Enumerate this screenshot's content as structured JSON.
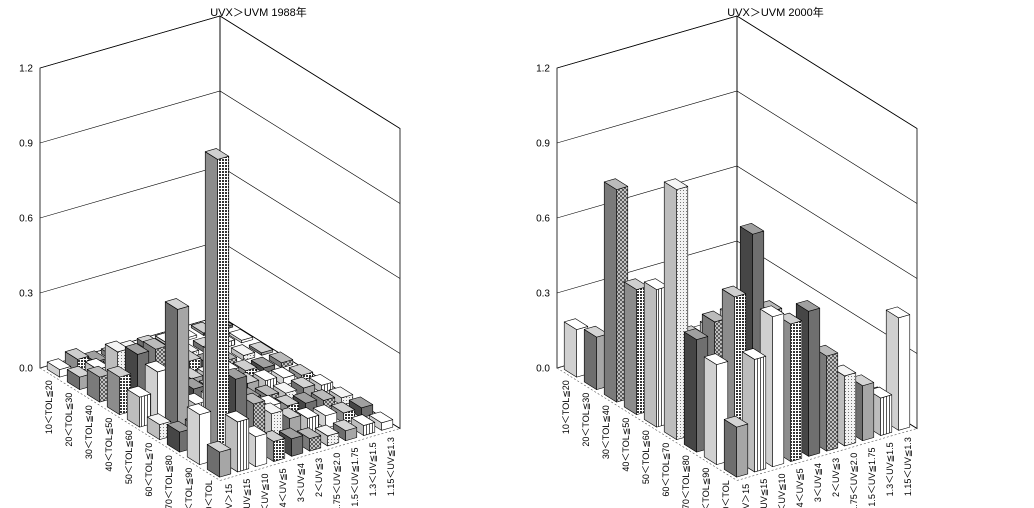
{
  "chart_data": [
    {
      "type": "bar3d",
      "title": "UVX＞UVM  1988年",
      "zlim": [
        0,
        1.2
      ],
      "z_ticks": [
        "0.0",
        "0.3",
        "0.6",
        "0.9",
        "1.2"
      ],
      "tol_categories": [
        "10＜TOL≦20",
        "20＜TOL≦30",
        "30＜TOL≦40",
        "40＜TOL≦50",
        "50＜TOL≦60",
        "60＜TOL≦70",
        "70＜TOL≦80",
        "80＜TOL≦90",
        "90＜TOL"
      ],
      "uv_categories": [
        "UV＞15",
        "10＜UV≦15",
        "5＜UV≦10",
        "4＜UV≦5",
        "3＜UV≦4",
        "2＜UV≦3",
        "1.75＜UV≦2.0",
        "1.5＜UV≦1.75",
        "1.3＜UV≦1.5",
        "1.15＜UV≦1.3"
      ],
      "values": [
        [
          0.03,
          0.05,
          0.02,
          0.02,
          0.02,
          0.02,
          0.01,
          0.01,
          0.01,
          0.01
        ],
        [
          0.05,
          0.06,
          0.04,
          0.04,
          0.04,
          0.03,
          0.02,
          0.02,
          0.02,
          0.01
        ],
        [
          0.1,
          0.18,
          0.06,
          0.05,
          0.04,
          0.06,
          0.03,
          0.02,
          0.02,
          0.01
        ],
        [
          0.15,
          0.22,
          0.22,
          0.07,
          0.06,
          0.05,
          0.05,
          0.03,
          0.02,
          0.02
        ],
        [
          0.12,
          0.2,
          0.14,
          0.09,
          0.07,
          0.07,
          0.05,
          0.04,
          0.03,
          0.02
        ],
        [
          0.06,
          0.5,
          0.1,
          0.1,
          0.09,
          0.06,
          0.05,
          0.04,
          0.04,
          0.03
        ],
        [
          0.08,
          0.08,
          0.35,
          0.08,
          0.1,
          0.08,
          0.06,
          0.05,
          0.04,
          0.03
        ],
        [
          0.2,
          1.2,
          0.3,
          0.18,
          0.12,
          0.08,
          0.06,
          0.05,
          0.04,
          0.04
        ],
        [
          0.1,
          0.2,
          0.12,
          0.08,
          0.07,
          0.05,
          0.04,
          0.04,
          0.04,
          0.03
        ]
      ]
    },
    {
      "type": "bar3d",
      "title": "UVX＞UVM  2000年",
      "zlim": [
        0,
        1.2
      ],
      "z_ticks": [
        "0.0",
        "0.3",
        "0.6",
        "0.9",
        "1.2"
      ],
      "tol_categories": [
        "10＜TOL≦20",
        "20＜TOL≦30",
        "30＜TOL≦40",
        "40＜TOL≦50",
        "50＜TOL≦60",
        "60＜TOL≦70",
        "70＜TOL≦80",
        "80＜TOL≦90",
        "90＜TOL"
      ],
      "uv_categories": [
        "UV＞15",
        "10＜UV≦15",
        "5＜UV≦10",
        "4＜UV≦5",
        "3＜UV≦4",
        "2＜UV≦3",
        "1.75＜UV≦2.0",
        "1.5＜UV≦1.75",
        "1.3＜UV≦1.5",
        "1.15＜UV≦1.3"
      ],
      "values": [
        [
          0.19,
          0.05,
          0.04,
          0.04,
          0.03,
          0.03,
          0.03,
          0.02,
          0.02,
          0.02
        ],
        [
          0.21,
          0.07,
          0.05,
          0.05,
          0.05,
          0.04,
          0.04,
          0.03,
          0.02,
          0.02
        ],
        [
          0.85,
          0.26,
          0.12,
          0.09,
          0.09,
          0.07,
          0.05,
          0.04,
          0.03,
          0.02
        ],
        [
          0.5,
          0.35,
          0.2,
          0.15,
          0.12,
          0.09,
          0.07,
          0.06,
          0.04,
          0.03
        ],
        [
          0.55,
          0.3,
          0.32,
          0.22,
          0.19,
          0.16,
          0.12,
          0.08,
          0.06,
          0.04
        ],
        [
          1.0,
          0.35,
          0.4,
          0.3,
          0.28,
          0.2,
          0.15,
          0.12,
          0.08,
          0.05
        ],
        [
          0.45,
          0.5,
          0.5,
          0.35,
          0.32,
          0.25,
          0.18,
          0.15,
          0.1,
          0.06
        ],
        [
          0.4,
          0.65,
          0.88,
          0.55,
          0.45,
          0.3,
          0.22,
          0.18,
          0.12,
          0.08
        ],
        [
          0.2,
          0.45,
          0.6,
          0.55,
          0.58,
          0.38,
          0.28,
          0.22,
          0.15,
          0.45
        ]
      ]
    }
  ]
}
